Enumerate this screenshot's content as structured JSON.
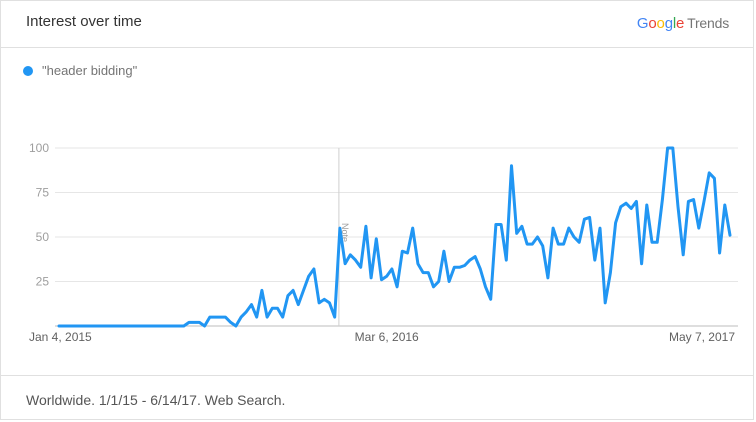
{
  "header": {
    "title": "Interest over time"
  },
  "logo": {
    "google": "Google",
    "trends": "Trends",
    "colors": [
      "#4285f4",
      "#ea4335",
      "#fbbc05",
      "#4285f4",
      "#34a853",
      "#ea4335"
    ]
  },
  "legend": {
    "label": "\"header bidding\"",
    "color": "#2196f3"
  },
  "footer": {
    "text": "Worldwide. 1/1/15 - 6/14/17. Web Search."
  },
  "chart_data": {
    "type": "line",
    "title": "Interest over time",
    "series": [
      {
        "name": "\"header bidding\"",
        "values": [
          0,
          0,
          0,
          0,
          0,
          0,
          0,
          0,
          0,
          0,
          0,
          0,
          0,
          0,
          0,
          0,
          0,
          0,
          0,
          0,
          0,
          0,
          0,
          0,
          0,
          2,
          2,
          2,
          0,
          5,
          5,
          5,
          5,
          2,
          0,
          5,
          8,
          12,
          5,
          20,
          5,
          10,
          10,
          5,
          17,
          20,
          12,
          20,
          28,
          32,
          13,
          15,
          13,
          5,
          55,
          35,
          40,
          37,
          33,
          56,
          27,
          49,
          26,
          28,
          32,
          22,
          42,
          41,
          55,
          35,
          30,
          30,
          22,
          25,
          42,
          25,
          33,
          33,
          34,
          37,
          39,
          32,
          22,
          15,
          57,
          57,
          37,
          90,
          52,
          56,
          46,
          46,
          50,
          45,
          27,
          55,
          46,
          46,
          55,
          50,
          47,
          60,
          61,
          37,
          55,
          13,
          30,
          58,
          67,
          69,
          66,
          70,
          35,
          68,
          47,
          47,
          71,
          100,
          100,
          67,
          40,
          70,
          71,
          55,
          70,
          86,
          83,
          41,
          68,
          51
        ]
      }
    ],
    "x_ticks": [
      "Jan 4, 2015",
      "Mar 6, 2016",
      "May 7, 2017"
    ],
    "y_ticks": [
      25,
      50,
      75,
      100
    ],
    "ylim": [
      0,
      100
    ],
    "annotation": "Note",
    "grid": true,
    "line_color": "#2196f3"
  }
}
